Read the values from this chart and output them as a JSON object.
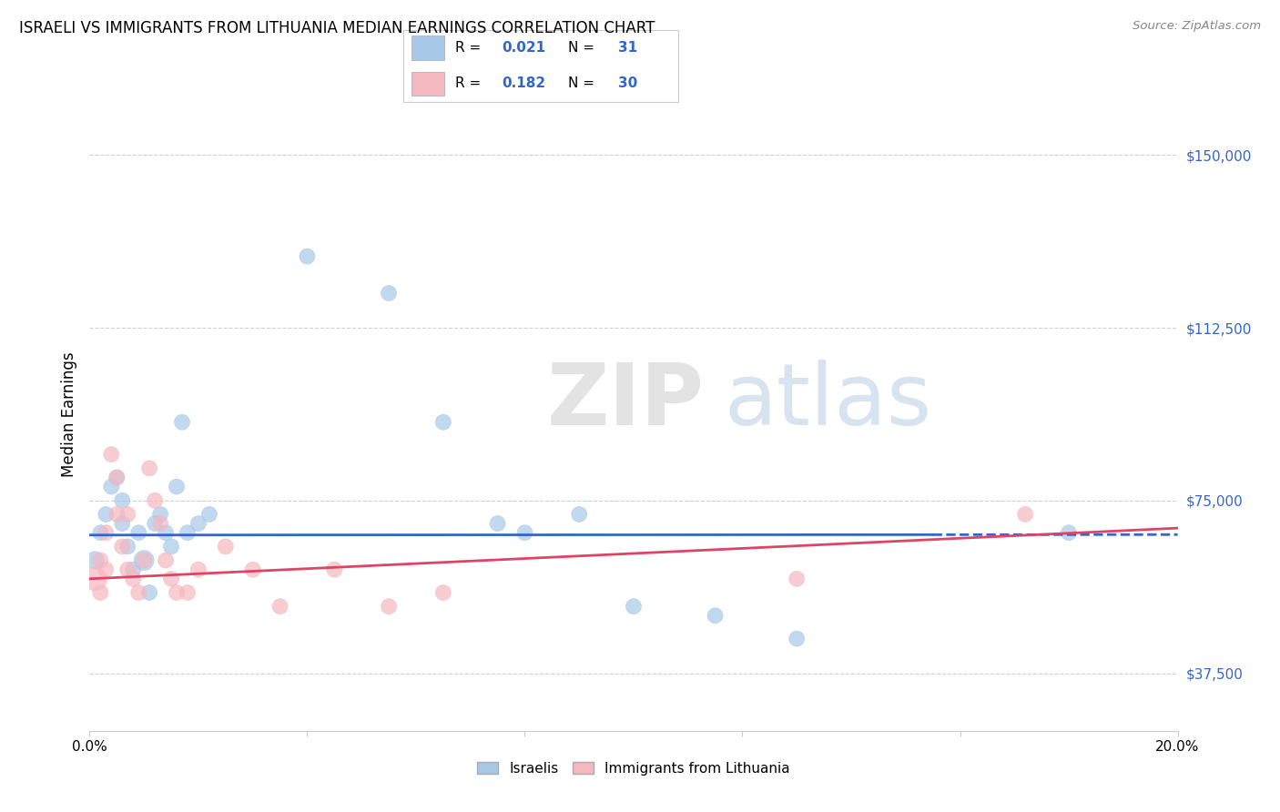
{
  "title": "ISRAELI VS IMMIGRANTS FROM LITHUANIA MEDIAN EARNINGS CORRELATION CHART",
  "source": "Source: ZipAtlas.com",
  "ylabel": "Median Earnings",
  "watermark": "ZIPatlas",
  "ylim": [
    25000,
    162500
  ],
  "xlim": [
    0.0,
    0.2
  ],
  "legend1_R": "0.021",
  "legend1_N": "31",
  "legend2_R": "0.182",
  "legend2_N": "30",
  "legend_label1": "Israelis",
  "legend_label2": "Immigrants from Lithuania",
  "blue_color": "#a8c8e8",
  "pink_color": "#f4b8c0",
  "blue_line_color": "#3366cc",
  "pink_line_color": "#dd4466",
  "ytick_vals": [
    37500,
    75000,
    112500,
    150000
  ],
  "ytick_labels": [
    "$37,500",
    "$75,000",
    "$112,500",
    "$150,000"
  ],
  "israelis_x": [
    0.001,
    0.002,
    0.003,
    0.004,
    0.005,
    0.006,
    0.006,
    0.007,
    0.008,
    0.009,
    0.01,
    0.011,
    0.012,
    0.013,
    0.014,
    0.015,
    0.016,
    0.017,
    0.018,
    0.02,
    0.022,
    0.04,
    0.055,
    0.065,
    0.075,
    0.08,
    0.09,
    0.1,
    0.115,
    0.13,
    0.18
  ],
  "israelis_y": [
    62000,
    68000,
    72000,
    78000,
    80000,
    75000,
    70000,
    65000,
    60000,
    68000,
    62000,
    55000,
    70000,
    72000,
    68000,
    65000,
    78000,
    92000,
    68000,
    70000,
    72000,
    128000,
    120000,
    92000,
    70000,
    68000,
    72000,
    52000,
    50000,
    45000,
    68000
  ],
  "israelis_size": [
    200,
    150,
    150,
    150,
    150,
    150,
    150,
    150,
    150,
    150,
    250,
    150,
    150,
    150,
    150,
    150,
    150,
    150,
    150,
    150,
    150,
    150,
    150,
    150,
    150,
    150,
    150,
    150,
    150,
    150,
    150
  ],
  "immigrants_x": [
    0.001,
    0.002,
    0.002,
    0.003,
    0.003,
    0.004,
    0.005,
    0.005,
    0.006,
    0.007,
    0.007,
    0.008,
    0.009,
    0.01,
    0.011,
    0.012,
    0.013,
    0.014,
    0.015,
    0.016,
    0.018,
    0.02,
    0.025,
    0.03,
    0.035,
    0.045,
    0.055,
    0.065,
    0.13,
    0.172
  ],
  "immigrants_y": [
    58000,
    62000,
    55000,
    68000,
    60000,
    85000,
    80000,
    72000,
    65000,
    72000,
    60000,
    58000,
    55000,
    62000,
    82000,
    75000,
    70000,
    62000,
    58000,
    55000,
    55000,
    60000,
    65000,
    60000,
    52000,
    60000,
    52000,
    55000,
    58000,
    72000
  ],
  "immigrants_size": [
    350,
    150,
    150,
    150,
    150,
    150,
    150,
    150,
    150,
    150,
    150,
    150,
    150,
    150,
    150,
    150,
    150,
    150,
    150,
    150,
    150,
    150,
    150,
    150,
    150,
    150,
    150,
    150,
    150,
    150
  ]
}
